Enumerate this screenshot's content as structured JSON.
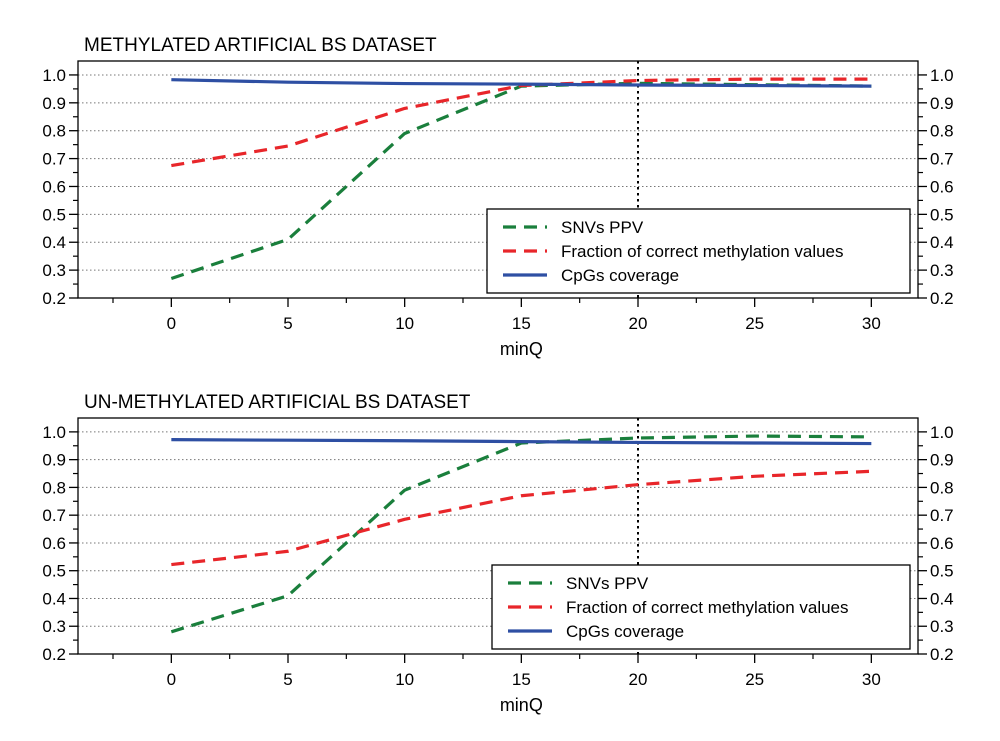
{
  "chart_data": [
    {
      "type": "line",
      "title": "METHYLATED ARTIFICIAL BS DATASET",
      "xlabel": "minQ",
      "ylabel": "",
      "xlim": [
        -4,
        32
      ],
      "ylim": [
        0.2,
        1.05
      ],
      "x_ticks": [
        0,
        5,
        10,
        15,
        20,
        25,
        30
      ],
      "y_ticks": [
        0.2,
        0.3,
        0.4,
        0.5,
        0.6,
        0.7,
        0.8,
        0.9,
        1.0
      ],
      "y_tick_labels": [
        "0.2",
        "0.3",
        "0.4",
        "0.5",
        "0.6",
        "0.7",
        "0.8",
        "0.9",
        "1.0"
      ],
      "grid": "horizontal dotted",
      "vertical_marker": 20,
      "legend_position": "bottom-right",
      "x": [
        0,
        5,
        10,
        15,
        20,
        25,
        30
      ],
      "series": [
        {
          "name": "SNVs PPV",
          "color": "#1a7f3c",
          "style": "dashed",
          "values": [
            0.27,
            0.41,
            0.79,
            0.96,
            0.97,
            0.965,
            0.96
          ]
        },
        {
          "name": "Fraction of correct methylation values",
          "color": "#e8262a",
          "style": "dashed",
          "values": [
            0.675,
            0.745,
            0.88,
            0.962,
            0.98,
            0.985,
            0.985
          ]
        },
        {
          "name": "CpGs coverage",
          "color": "#2e4fa3",
          "style": "solid",
          "values": [
            0.983,
            0.974,
            0.969,
            0.967,
            0.964,
            0.962,
            0.96
          ]
        }
      ]
    },
    {
      "type": "line",
      "title": "UN-METHYLATED ARTIFICIAL BS DATASET",
      "xlabel": "minQ",
      "ylabel": "",
      "xlim": [
        -4,
        32
      ],
      "ylim": [
        0.2,
        1.05
      ],
      "x_ticks": [
        0,
        5,
        10,
        15,
        20,
        25,
        30
      ],
      "y_ticks": [
        0.2,
        0.3,
        0.4,
        0.5,
        0.6,
        0.7,
        0.8,
        0.9,
        1.0
      ],
      "y_tick_labels": [
        "0.2",
        "0.3",
        "0.4",
        "0.5",
        "0.6",
        "0.7",
        "0.8",
        "0.9",
        "1.0"
      ],
      "grid": "horizontal dotted",
      "vertical_marker": 20,
      "legend_position": "bottom-right",
      "x": [
        0,
        5,
        10,
        15,
        20,
        25,
        30
      ],
      "series": [
        {
          "name": "SNVs PPV",
          "color": "#1a7f3c",
          "style": "dashed",
          "values": [
            0.28,
            0.41,
            0.79,
            0.96,
            0.978,
            0.985,
            0.982
          ]
        },
        {
          "name": "Fraction of correct methylation values",
          "color": "#e8262a",
          "style": "dashed",
          "values": [
            0.522,
            0.57,
            0.685,
            0.77,
            0.81,
            0.84,
            0.858
          ]
        },
        {
          "name": "CpGs coverage",
          "color": "#2e4fa3",
          "style": "solid",
          "values": [
            0.972,
            0.97,
            0.968,
            0.965,
            0.962,
            0.96,
            0.958
          ]
        }
      ]
    }
  ]
}
